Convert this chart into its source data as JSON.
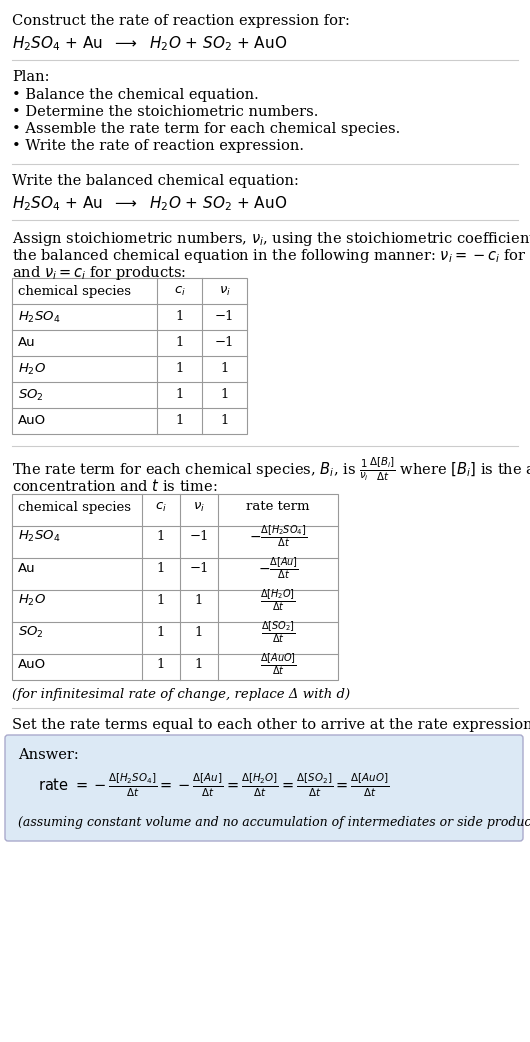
{
  "title_line1": "Construct the rate of reaction expression for:",
  "plan_header": "Plan:",
  "plan_items": [
    "• Balance the chemical equation.",
    "• Determine the stoichiometric numbers.",
    "• Assemble the rate term for each chemical species.",
    "• Write the rate of reaction expression."
  ],
  "balanced_eq_header": "Write the balanced chemical equation:",
  "table1_rows": [
    [
      "H_2SO_4",
      "1",
      "−1"
    ],
    [
      "Au",
      "1",
      "−1"
    ],
    [
      "H_2O",
      "1",
      "1"
    ],
    [
      "SO_2",
      "1",
      "1"
    ],
    [
      "AuO",
      "1",
      "1"
    ]
  ],
  "table2_rows": [
    [
      "H_2SO_4",
      "1",
      "−1"
    ],
    [
      "Au",
      "1",
      "−1"
    ],
    [
      "H_2O",
      "1",
      "1"
    ],
    [
      "SO_2",
      "1",
      "1"
    ],
    [
      "AuO",
      "1",
      "1"
    ]
  ],
  "infinitesimal_note": "(for infinitesimal rate of change, replace Δ with d)",
  "set_equal_text": "Set the rate terms equal to each other to arrive at the rate expression:",
  "answer_label": "Answer:",
  "answer_box_color": "#dce9f5",
  "assuming_note": "(assuming constant volume and no accumulation of intermediates or side products)",
  "bg_color": "#ffffff",
  "text_color": "#000000",
  "table_border_color": "#999999",
  "section_line_color": "#cccccc"
}
